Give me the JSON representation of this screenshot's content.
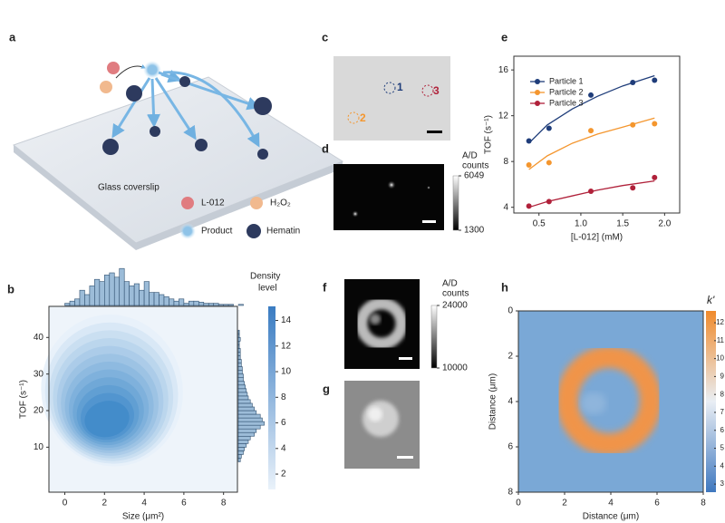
{
  "panel_labels": [
    "a",
    "b",
    "c",
    "d",
    "e",
    "f",
    "g",
    "h"
  ],
  "panel_a": {
    "caption": "Glass coverslip",
    "legend": [
      "L-012",
      "H₂O₂",
      "Product",
      "Hematin"
    ]
  },
  "panel_c": {
    "particles": [
      "1",
      "2",
      "3"
    ]
  },
  "panel_d": {
    "colorbar_title": [
      "A/D",
      "counts"
    ],
    "clim": [
      1300,
      6049
    ],
    "ticks": [
      1300,
      6049
    ]
  },
  "panel_f": {
    "colorbar_title": [
      "A/D",
      "counts"
    ],
    "clim": [
      10000,
      24000
    ],
    "ticks": [
      10000,
      24000
    ]
  },
  "chart_data": [
    {
      "type": "line",
      "xlabel": "[L-012] (mM)",
      "ylabel": "TOF  (s⁻¹)",
      "x": [
        0.38,
        0.62,
        1.12,
        1.62,
        1.88
      ],
      "fit_x": [
        0.38,
        0.6,
        0.9,
        1.2,
        1.5,
        1.88
      ],
      "series": [
        {
          "name": "Particle 1",
          "color": "#1f3d7a",
          "values": [
            9.8,
            10.9,
            13.8,
            14.9,
            15.1
          ],
          "fit": [
            9.6,
            11.2,
            12.6,
            13.7,
            14.6,
            15.5
          ]
        },
        {
          "name": "Particle 2",
          "color": "#f4962e",
          "values": [
            7.7,
            7.9,
            10.7,
            11.2,
            11.3
          ],
          "fit": [
            7.3,
            8.5,
            9.6,
            10.4,
            11.0,
            11.8
          ]
        },
        {
          "name": "Particle 3",
          "color": "#b0213a",
          "values": [
            4.1,
            4.5,
            5.4,
            5.7,
            6.6
          ],
          "fit": [
            4.0,
            4.5,
            5.0,
            5.5,
            5.9,
            6.3
          ]
        }
      ],
      "xlim": [
        0.2,
        2.18
      ],
      "ylim": [
        3.5,
        17.2
      ],
      "xticks": [
        0.5,
        {
          "value": 1,
          "label": "1.0"
        },
        1.5,
        {
          "value": 2,
          "label": "2.0"
        }
      ],
      "yticks": [
        4,
        8,
        12,
        16
      ]
    },
    {
      "type": "density",
      "xlabel": "Size (μm²)",
      "ylabel": "TOF  (s⁻¹)",
      "xlim": [
        -0.8,
        8.7
      ],
      "ylim": [
        -2.3,
        48.5
      ],
      "xticks": [
        0,
        2,
        4,
        6,
        8
      ],
      "yticks": [
        10,
        20,
        30,
        40
      ],
      "hist_x": {
        "bins": [
          0,
          0.25,
          0.5,
          0.75,
          1,
          1.25,
          1.5,
          1.75,
          2,
          2.25,
          2.5,
          2.75,
          3,
          3.25,
          3.5,
          3.75,
          4,
          4.25,
          4.5,
          4.75,
          5,
          5.25,
          5.5,
          5.75,
          6,
          6.25,
          6.5,
          6.75,
          7,
          7.25,
          7.5,
          7.75,
          8,
          8.25,
          8.5,
          8.75,
          9
        ],
        "counts": [
          2,
          4,
          6,
          14,
          10,
          18,
          24,
          22,
          28,
          30,
          26,
          34,
          22,
          18,
          20,
          14,
          22,
          12,
          12,
          10,
          8,
          6,
          4,
          6,
          2,
          4,
          4,
          3,
          2,
          2,
          2,
          1,
          1,
          1,
          0,
          1
        ]
      },
      "hist_y": {
        "bins": [
          6,
          7,
          8,
          9,
          10,
          11,
          12,
          13,
          14,
          15,
          16,
          17,
          18,
          19,
          20,
          21,
          22,
          23,
          24,
          25,
          26,
          27,
          28,
          29,
          30,
          31,
          32,
          33,
          34,
          35,
          36,
          37,
          38,
          39,
          40,
          41,
          42
        ],
        "counts": [
          2,
          3,
          5,
          6,
          8,
          10,
          12,
          16,
          18,
          22,
          26,
          24,
          22,
          18,
          16,
          14,
          12,
          10,
          9,
          8,
          7,
          6,
          5,
          5,
          4,
          4,
          3,
          3,
          2,
          2,
          2,
          1,
          1,
          2,
          1,
          1
        ]
      },
      "colorbar": {
        "title": [
          "Density",
          "level"
        ],
        "clim": [
          0.8,
          15.1
        ],
        "ticks": [
          2,
          4,
          6,
          8,
          10,
          12,
          14
        ]
      }
    },
    {
      "type": "heatmap",
      "xlabel": "Distance (μm)",
      "ylabel": "Distance (μm)",
      "xlim": [
        0,
        8
      ],
      "ylim": [
        0,
        8
      ],
      "xticks": [
        0,
        2,
        4,
        6,
        8
      ],
      "yticks": [
        0,
        2,
        4,
        6,
        8
      ],
      "colorbar": {
        "title": "k'",
        "clim": [
          2.55,
          12.66
        ],
        "ticks": [
          3,
          4,
          5,
          6,
          7,
          8,
          9,
          10,
          11,
          12
        ]
      }
    }
  ]
}
